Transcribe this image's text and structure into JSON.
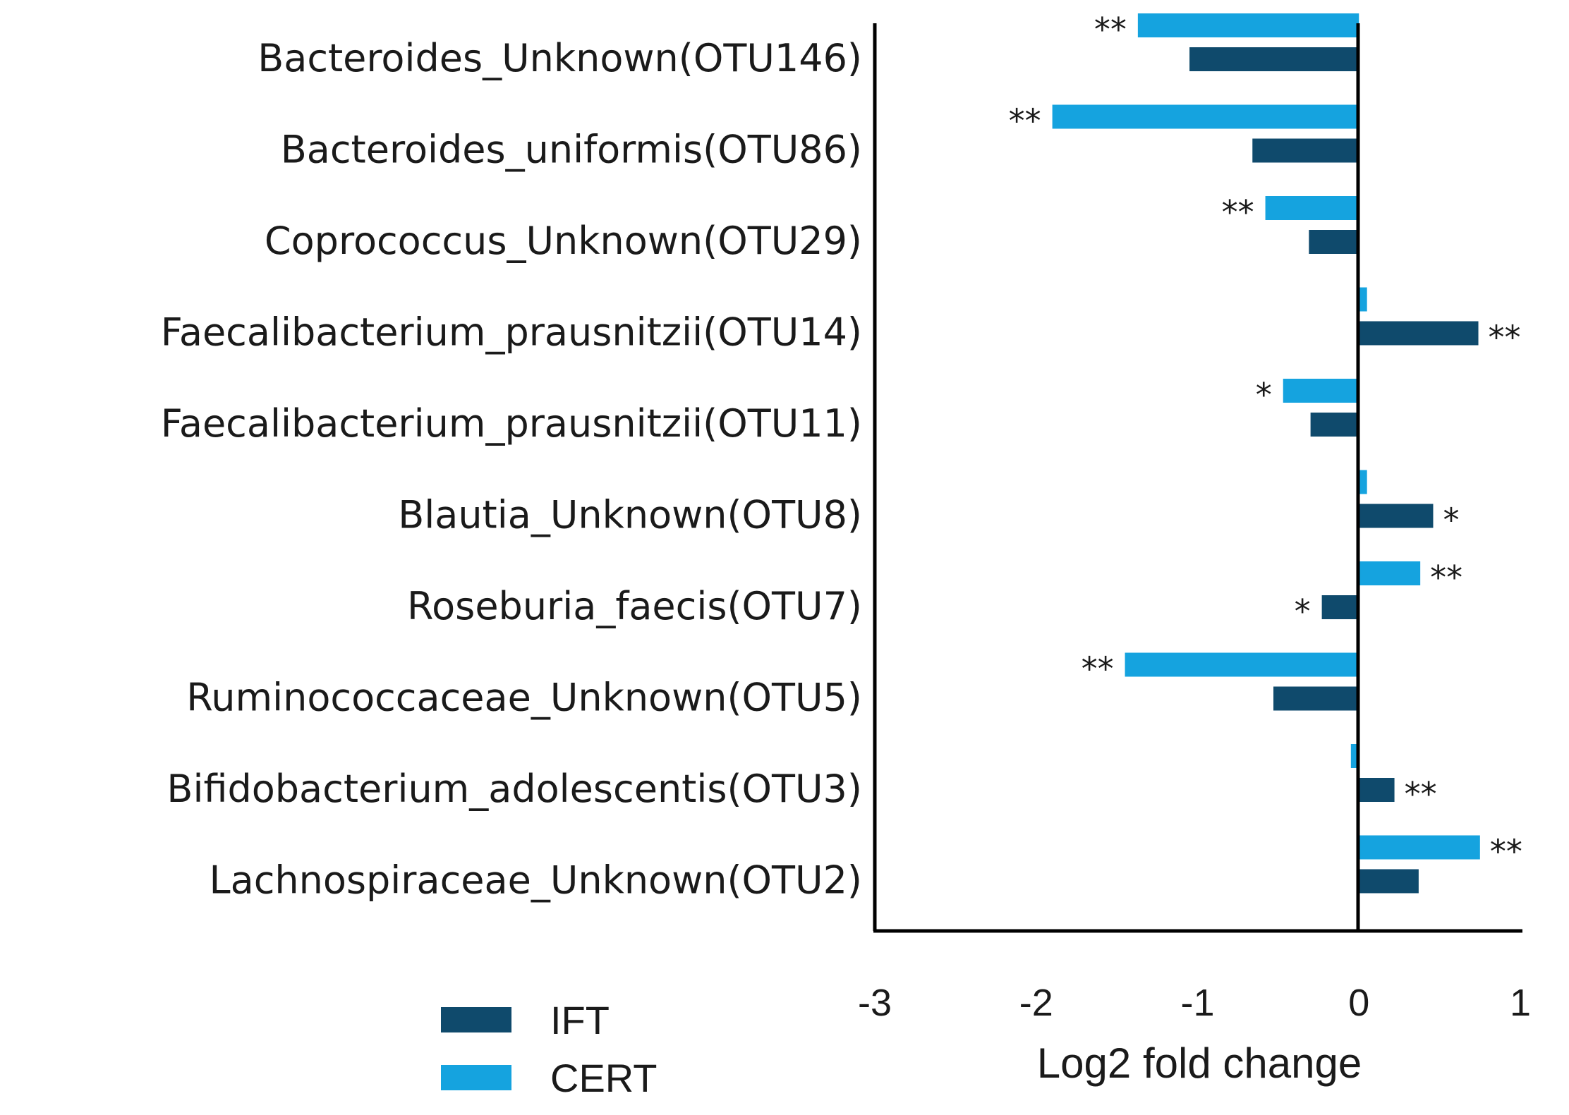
{
  "chart_data": {
    "type": "bar",
    "orientation": "horizontal",
    "categories": [
      "Bacteroides_Unknown(OTU146)",
      "Bacteroides_uniformis(OTU86)",
      "Coprococcus_Unknown(OTU29)",
      "Faecalibacterium_prausnitzii(OTU14)",
      "Faecalibacterium_prausnitzii(OTU11)",
      "Blautia_Unknown(OTU8)",
      "Roseburia_faecis(OTU7)",
      "Ruminococcaceae_Unknown(OTU5)",
      "Bifidobacterium_adolescentis(OTU3)",
      "Lachnospiraceae_Unknown(OTU2)"
    ],
    "series": [
      {
        "name": "CERT",
        "color": "#15a3df",
        "values": [
          -1.37,
          -1.9,
          -0.58,
          0.05,
          -0.47,
          0.05,
          0.38,
          -1.45,
          -0.05,
          0.75
        ],
        "significance": [
          "**",
          "**",
          "**",
          "",
          "*",
          "",
          "**",
          "**",
          "",
          "**"
        ]
      },
      {
        "name": "IFT",
        "color": "#0f4a6c",
        "values": [
          -1.05,
          -0.66,
          -0.31,
          0.74,
          -0.3,
          0.46,
          -0.23,
          -0.53,
          0.22,
          0.37
        ],
        "significance": [
          "",
          "",
          "",
          "**",
          "",
          "*",
          "*",
          "",
          "**",
          ""
        ]
      }
    ],
    "xticks": [
      "-3",
      "-2",
      "-1",
      "0",
      "1"
    ],
    "xlim": [
      -3,
      1
    ],
    "xlabel": "Log2 fold change",
    "ylabel": "",
    "title": "",
    "legend": {
      "position": "bottom-left",
      "entries": [
        "IFT",
        "CERT"
      ]
    }
  }
}
